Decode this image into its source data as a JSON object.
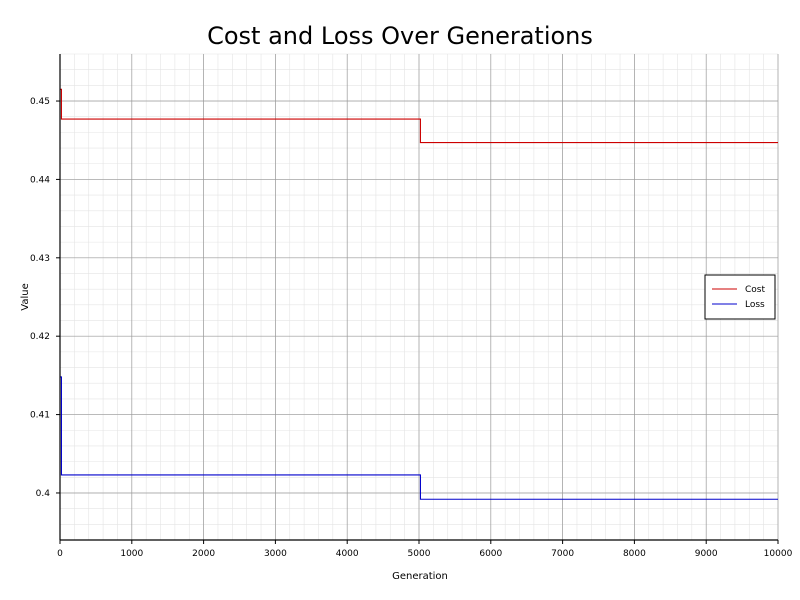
{
  "chart_data": {
    "type": "line",
    "title": "Cost and Loss Over Generations",
    "xlabel": "Generation",
    "ylabel": "Value",
    "xlim": [
      0,
      10000
    ],
    "ylim": [
      0.394,
      0.456
    ],
    "x_ticks": [
      0,
      1000,
      2000,
      3000,
      4000,
      5000,
      6000,
      7000,
      8000,
      9000,
      10000
    ],
    "y_ticks": [
      0.4,
      0.41,
      0.42,
      0.43,
      0.44,
      0.45
    ],
    "y_tick_labels": [
      "0.4",
      "0.41",
      "0.42",
      "0.43",
      "0.44",
      "0.45"
    ],
    "grid": true,
    "legend_position": "right",
    "series": [
      {
        "name": "Cost",
        "color": "#cc0000",
        "step": true,
        "x": [
          0,
          20,
          5000,
          5020,
          10000
        ],
        "y": [
          0.4515,
          0.4477,
          0.4477,
          0.4447,
          0.4447
        ]
      },
      {
        "name": "Loss",
        "color": "#0000cc",
        "step": true,
        "x": [
          0,
          20,
          5000,
          5020,
          10000
        ],
        "y": [
          0.4148,
          0.4023,
          0.4023,
          0.3992,
          0.3992
        ]
      }
    ]
  }
}
